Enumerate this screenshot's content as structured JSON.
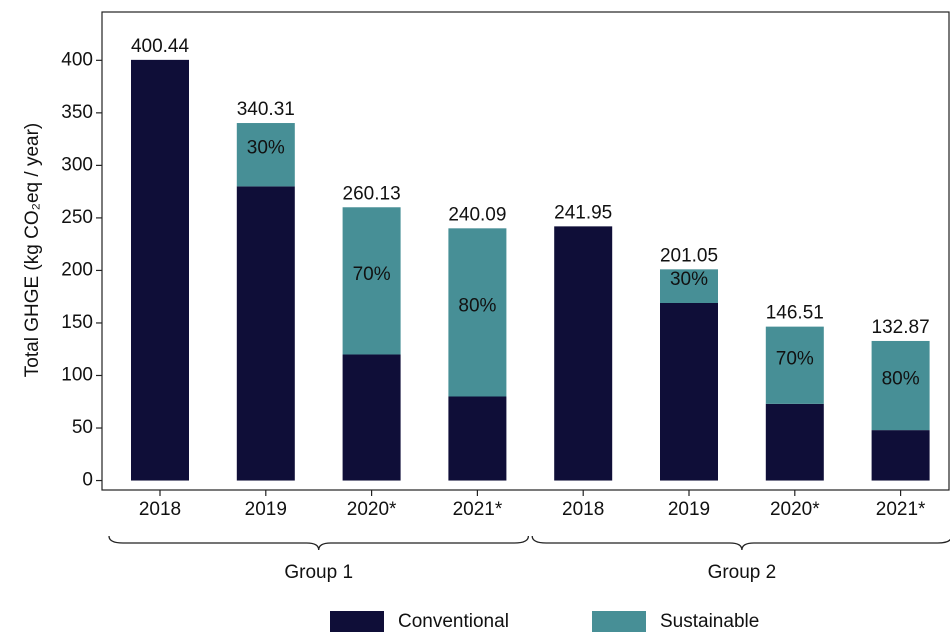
{
  "chart_data": {
    "type": "stacked_bar",
    "y_label": "Total GHGE (kg CO₂eq / year)",
    "categories": [
      "2018",
      "2019",
      "2020*",
      "2021*",
      "2018",
      "2019",
      "2020*",
      "2021*"
    ],
    "groups": [
      {
        "name": "Group 1",
        "size": 4
      },
      {
        "name": "Group 2",
        "size": 4
      }
    ],
    "series": [
      {
        "name": "Conventional",
        "color": "#0f0e38",
        "values": [
          400.44,
          280,
          120,
          80,
          241.95,
          169,
          73,
          48
        ]
      },
      {
        "name": "Sustainable",
        "color": "#478f96",
        "values": [
          0,
          60.31,
          140.13,
          160.09,
          0,
          32.05,
          73.51,
          84.87
        ],
        "share_labels": [
          null,
          "30%",
          "70%",
          "80%",
          null,
          "30%",
          "70%",
          "80%"
        ]
      }
    ],
    "totals": [
      400.44,
      340.31,
      260.13,
      240.09,
      241.95,
      201.05,
      146.51,
      132.87
    ],
    "ylim": [
      -9,
      446
    ],
    "yticks": [
      0,
      50,
      100,
      150,
      200,
      250,
      300,
      350,
      400
    ],
    "legend": "bottom"
  }
}
